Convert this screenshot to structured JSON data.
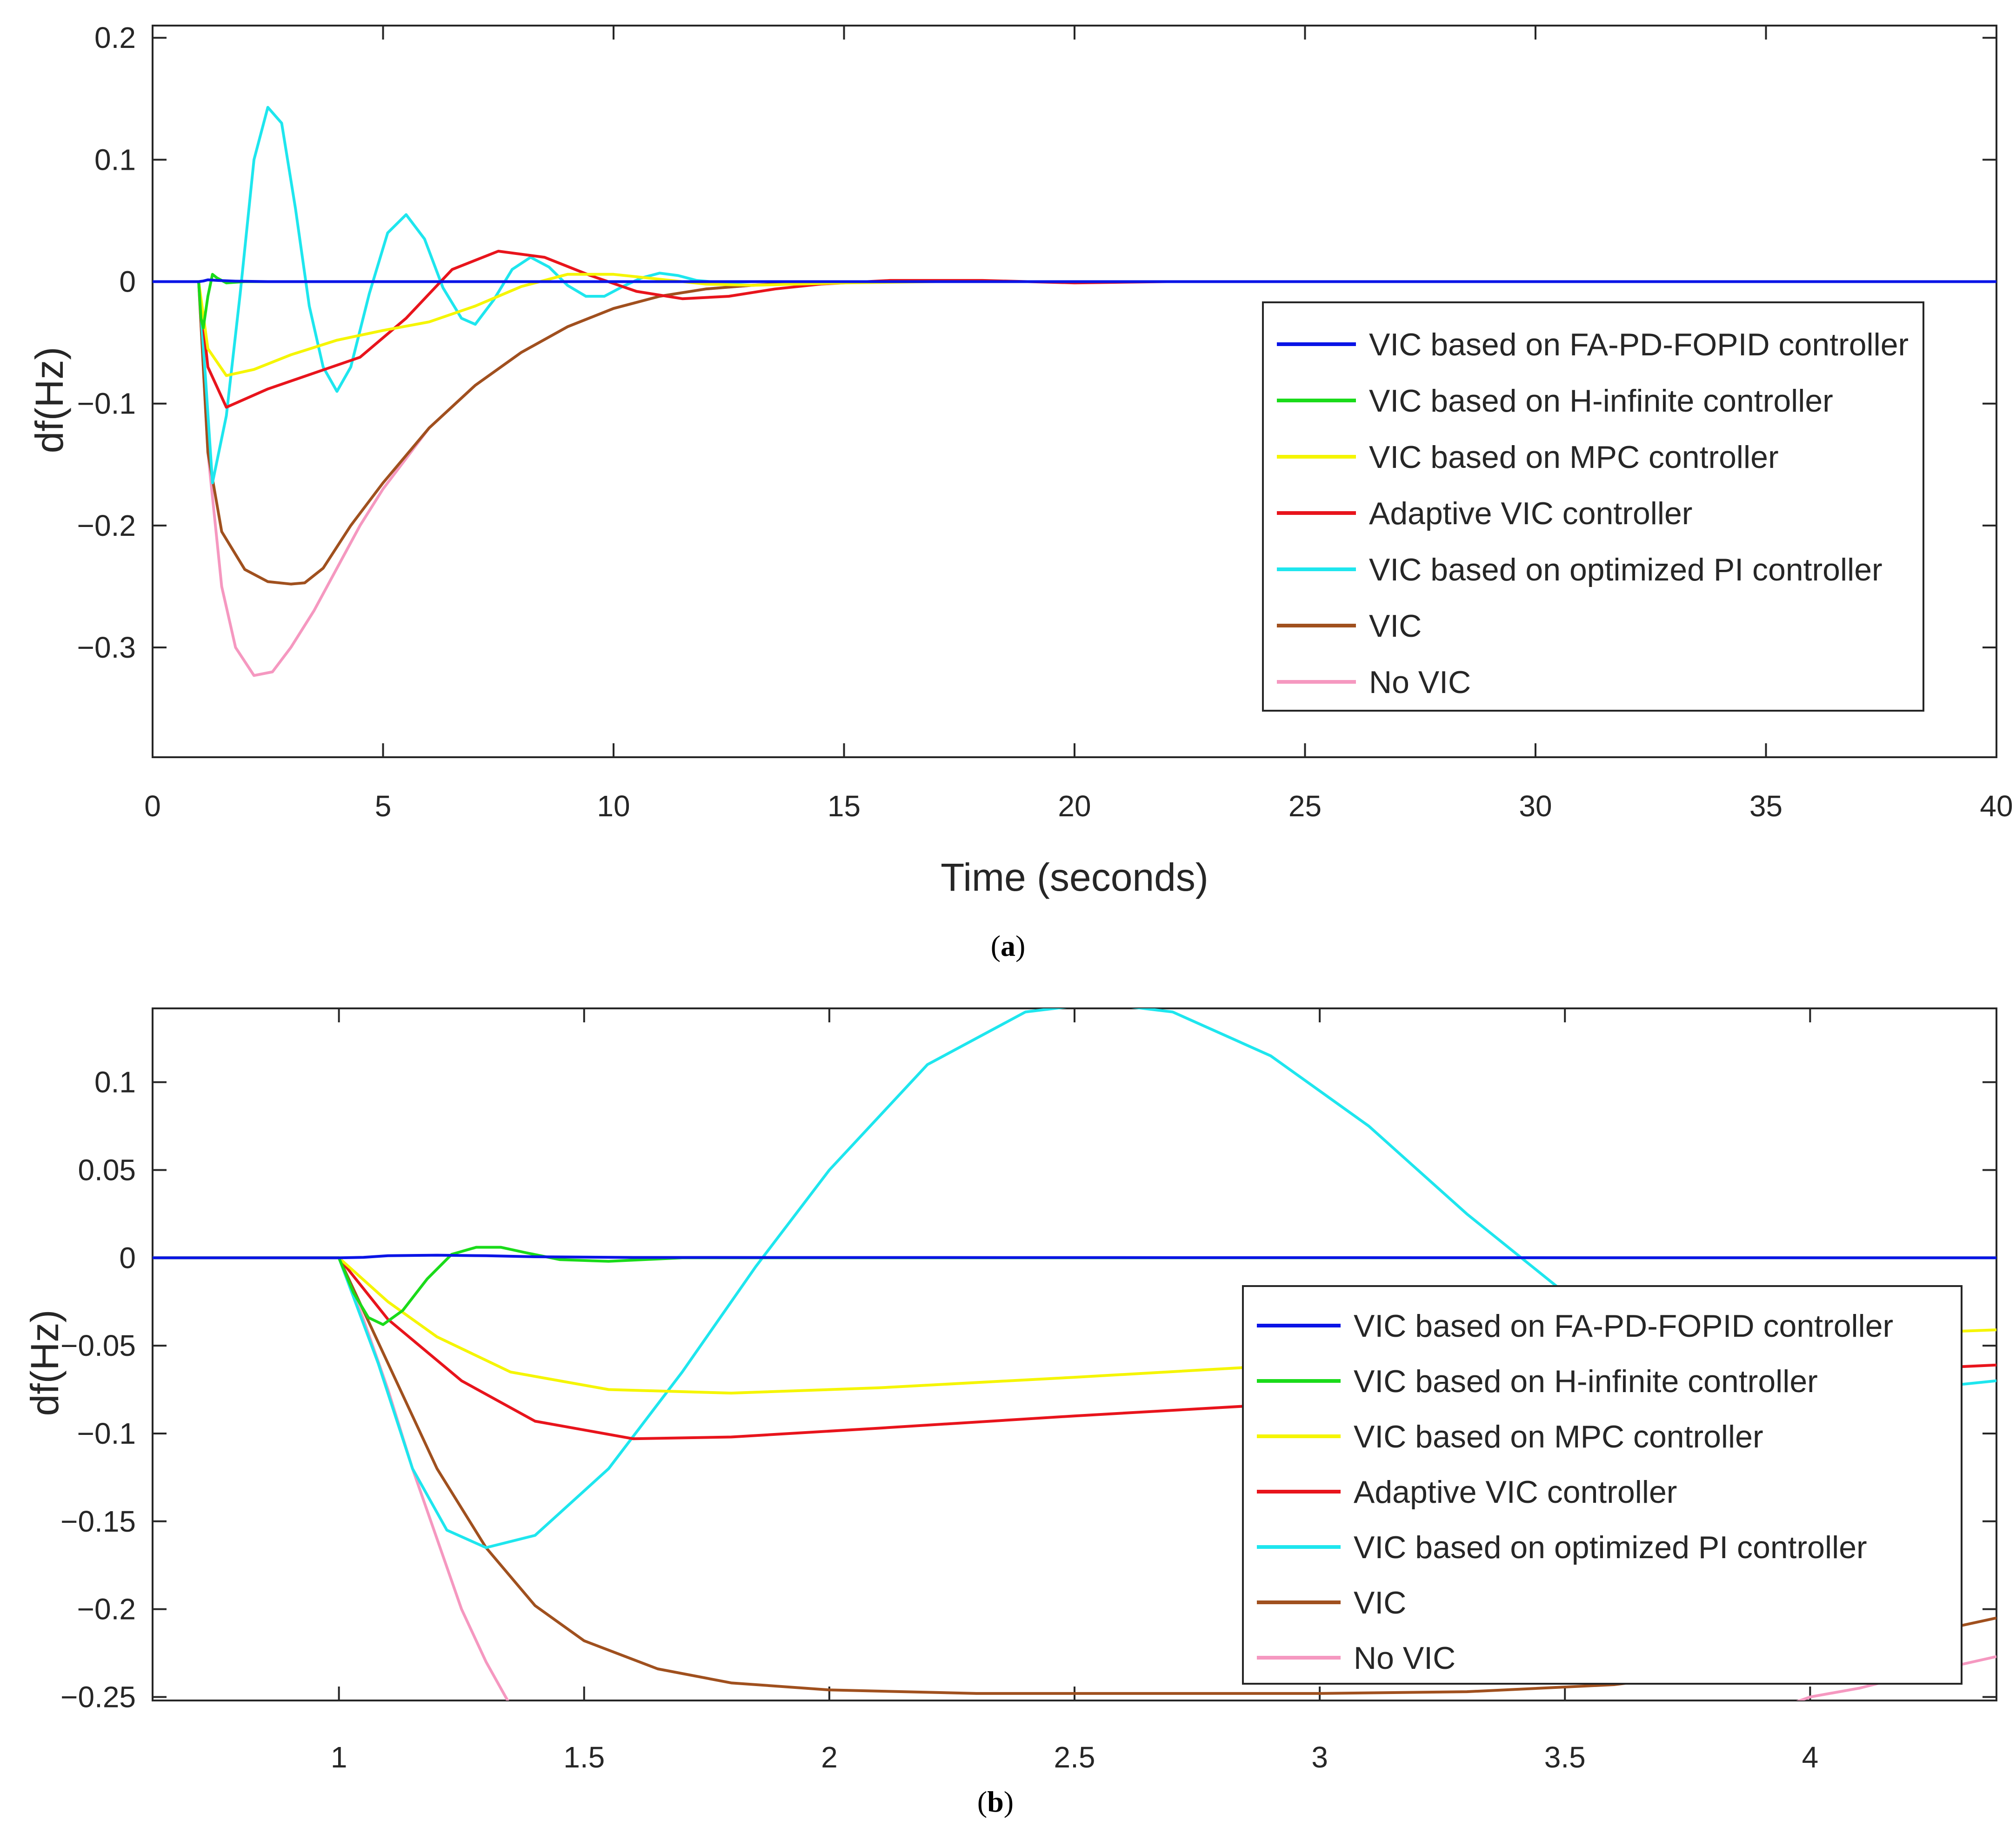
{
  "chart_data": [
    {
      "type": "line",
      "panel_label": "a",
      "caption_open": "(",
      "caption_close": ")",
      "xlabel": "Time (seconds)",
      "ylabel": "df(Hz)",
      "xlim": [
        0,
        40
      ],
      "ylim": [
        -0.39,
        0.21
      ],
      "xticks": [
        0,
        5,
        10,
        15,
        20,
        25,
        30,
        35,
        40
      ],
      "yticks": [
        -0.3,
        -0.2,
        -0.1,
        0,
        0.1,
        0.2
      ],
      "ytick_labels": [
        "−0.3",
        "−0.2",
        "−0.1",
        "0",
        "0.1",
        "0.2"
      ],
      "legend_position": "right",
      "series": [
        {
          "name": "VIC based on FA-PD-FOPID controller",
          "color": "#0a14e6",
          "x": [
            0,
            1,
            1.1,
            1.2,
            1.4,
            1.8,
            2.5,
            40
          ],
          "y": [
            0,
            0,
            0.0005,
            0.0015,
            0.001,
            0.0004,
            0,
            0
          ]
        },
        {
          "name": "VIC based on H-infinite controller",
          "color": "#1adb1a",
          "x": [
            0,
            1,
            1.05,
            1.1,
            1.2,
            1.3,
            1.4,
            1.6,
            2.0,
            40
          ],
          "y": [
            0,
            0,
            -0.03,
            -0.038,
            -0.012,
            0.006,
            0.003,
            -0.001,
            0,
            0
          ]
        },
        {
          "name": "VIC based on MPC controller",
          "color": "#f5f500",
          "x": [
            0,
            1,
            1.2,
            1.6,
            2.2,
            3,
            4,
            5,
            6,
            7,
            8,
            9,
            10,
            11,
            12,
            13,
            14,
            15,
            17,
            40
          ],
          "y": [
            0,
            0,
            -0.055,
            -0.077,
            -0.072,
            -0.06,
            -0.048,
            -0.04,
            -0.033,
            -0.02,
            -0.004,
            0.006,
            0.006,
            0.002,
            -0.002,
            -0.003,
            -0.002,
            -0.001,
            0,
            0
          ]
        },
        {
          "name": "Adaptive VIC controller",
          "color": "#e8141c",
          "x": [
            0,
            1,
            1.2,
            1.6,
            2.5,
            3.5,
            4.5,
            5.5,
            6.5,
            7.5,
            8.5,
            9.5,
            10.5,
            11.5,
            12.5,
            13.5,
            14.5,
            16,
            18,
            20,
            22,
            40
          ],
          "y": [
            0,
            0,
            -0.07,
            -0.103,
            -0.088,
            -0.075,
            -0.062,
            -0.03,
            0.01,
            0.025,
            0.02,
            0.005,
            -0.008,
            -0.014,
            -0.012,
            -0.006,
            -0.002,
            0.001,
            0.001,
            -0.001,
            0,
            0
          ]
        },
        {
          "name": "VIC based on optimized PI controller",
          "color": "#1ee6ee",
          "x": [
            0,
            1,
            1.15,
            1.3,
            1.6,
            1.9,
            2.2,
            2.5,
            2.8,
            3.1,
            3.4,
            3.7,
            4.0,
            4.3,
            4.7,
            5.1,
            5.5,
            5.9,
            6.3,
            6.7,
            7.0,
            7.4,
            7.8,
            8.2,
            8.6,
            9.0,
            9.4,
            9.8,
            10.2,
            10.6,
            11.0,
            11.4,
            11.8,
            12.4,
            13,
            40
          ],
          "y": [
            0,
            0,
            -0.08,
            -0.165,
            -0.11,
            -0.01,
            0.1,
            0.143,
            0.13,
            0.06,
            -0.02,
            -0.07,
            -0.09,
            -0.07,
            -0.01,
            0.04,
            0.055,
            0.035,
            -0.005,
            -0.03,
            -0.035,
            -0.015,
            0.01,
            0.02,
            0.012,
            -0.003,
            -0.012,
            -0.012,
            -0.004,
            0.003,
            0.007,
            0.005,
            0.001,
            -0.001,
            0,
            0
          ]
        },
        {
          "name": "VIC",
          "color": "#a0501e",
          "x": [
            0,
            1,
            1.2,
            1.5,
            2.0,
            2.5,
            3.0,
            3.3,
            3.7,
            4.3,
            5,
            6,
            7,
            8,
            9,
            10,
            11,
            12,
            13,
            14,
            16,
            18,
            40
          ],
          "y": [
            0,
            0,
            -0.14,
            -0.205,
            -0.236,
            -0.246,
            -0.248,
            -0.247,
            -0.235,
            -0.2,
            -0.165,
            -0.12,
            -0.085,
            -0.058,
            -0.037,
            -0.022,
            -0.012,
            -0.006,
            -0.003,
            -0.001,
            0,
            0,
            0
          ]
        },
        {
          "name": "No VIC",
          "color": "#f598c0",
          "x": [
            0,
            1,
            1.2,
            1.5,
            1.8,
            2.2,
            2.6,
            3.0,
            3.5,
            4.0,
            4.5,
            5,
            6,
            7,
            8,
            9,
            10,
            11,
            12,
            13,
            14,
            16,
            18,
            40
          ],
          "y": [
            0,
            0,
            -0.14,
            -0.25,
            -0.3,
            -0.323,
            -0.32,
            -0.3,
            -0.27,
            -0.235,
            -0.2,
            -0.17,
            -0.12,
            -0.085,
            -0.058,
            -0.037,
            -0.022,
            -0.012,
            -0.006,
            -0.003,
            -0.001,
            0,
            0,
            0
          ]
        }
      ]
    },
    {
      "type": "line",
      "panel_label": "b",
      "caption_open": "(",
      "caption_close": ")",
      "xlabel": "",
      "ylabel": "df(Hz)",
      "xlim": [
        0.62,
        4.38
      ],
      "ylim": [
        -0.252,
        0.142
      ],
      "xticks": [
        1,
        1.5,
        2,
        2.5,
        3,
        3.5,
        4
      ],
      "yticks": [
        -0.25,
        -0.2,
        -0.15,
        -0.1,
        -0.05,
        0,
        0.05,
        0.1
      ],
      "ytick_labels": [
        "−0.25",
        "−0.2",
        "−0.15",
        "−0.1",
        "−0.05",
        "0",
        "0.05",
        "0.1"
      ],
      "legend_position": "right",
      "series": [
        {
          "name": "VIC based on FA-PD-FOPID controller",
          "color": "#0a14e6",
          "x": [
            0.62,
            1,
            1.05,
            1.1,
            1.2,
            1.3,
            1.4,
            1.6,
            4.38
          ],
          "y": [
            0,
            0,
            0.0003,
            0.0012,
            0.0015,
            0.0012,
            0.0006,
            0.0002,
            0
          ]
        },
        {
          "name": "VIC based on H-infinite controller",
          "color": "#1adb1a",
          "x": [
            0.62,
            1,
            1.03,
            1.06,
            1.09,
            1.13,
            1.18,
            1.23,
            1.28,
            1.33,
            1.38,
            1.45,
            1.55,
            1.7,
            4.38
          ],
          "y": [
            0,
            0,
            -0.02,
            -0.034,
            -0.038,
            -0.03,
            -0.012,
            0.002,
            0.006,
            0.006,
            0.003,
            -0.001,
            -0.002,
            0,
            0
          ]
        },
        {
          "name": "VIC based on MPC controller",
          "color": "#f5f500",
          "x": [
            0.62,
            1,
            1.1,
            1.2,
            1.35,
            1.55,
            1.8,
            2.1,
            2.5,
            3.0,
            3.5,
            4.0,
            4.38
          ],
          "y": [
            0,
            0,
            -0.025,
            -0.045,
            -0.065,
            -0.075,
            -0.077,
            -0.074,
            -0.068,
            -0.06,
            -0.052,
            -0.045,
            -0.041
          ]
        },
        {
          "name": "Adaptive VIC controller",
          "color": "#e8141c",
          "x": [
            0.62,
            1,
            1.1,
            1.25,
            1.4,
            1.6,
            1.8,
            2.1,
            2.5,
            3.0,
            3.5,
            4.0,
            4.38
          ],
          "y": [
            0,
            0,
            -0.035,
            -0.07,
            -0.093,
            -0.103,
            -0.102,
            -0.097,
            -0.09,
            -0.082,
            -0.074,
            -0.066,
            -0.061
          ]
        },
        {
          "name": "VIC based on optimized PI controller",
          "color": "#1ee6ee",
          "x": [
            0.62,
            1,
            1.08,
            1.15,
            1.22,
            1.3,
            1.4,
            1.55,
            1.7,
            1.85,
            2.0,
            2.2,
            2.4,
            2.55,
            2.7,
            2.9,
            3.1,
            3.3,
            3.5,
            3.7,
            3.9,
            4.1,
            4.38
          ],
          "y": [
            0,
            0,
            -0.06,
            -0.12,
            -0.155,
            -0.165,
            -0.158,
            -0.12,
            -0.065,
            -0.005,
            0.05,
            0.11,
            0.14,
            0.145,
            0.14,
            0.115,
            0.075,
            0.025,
            -0.02,
            -0.05,
            -0.07,
            -0.078,
            -0.07
          ]
        },
        {
          "name": "VIC",
          "color": "#a0501e",
          "x": [
            0.62,
            1,
            1.1,
            1.2,
            1.3,
            1.4,
            1.5,
            1.65,
            1.8,
            2.0,
            2.3,
            2.6,
            3.0,
            3.3,
            3.6,
            3.9,
            4.1,
            4.38
          ],
          "y": [
            0,
            0,
            -0.06,
            -0.12,
            -0.165,
            -0.198,
            -0.218,
            -0.234,
            -0.242,
            -0.246,
            -0.248,
            -0.248,
            -0.248,
            -0.247,
            -0.243,
            -0.233,
            -0.222,
            -0.205
          ]
        },
        {
          "name": "No VIC",
          "color": "#f598c0",
          "x": [
            0.62,
            1,
            1.05,
            1.1,
            1.15,
            1.2,
            1.25,
            1.3,
            1.35,
            3.95,
            4.0,
            4.1,
            4.2,
            4.3,
            4.38
          ],
          "y": [
            0,
            0,
            -0.035,
            -0.075,
            -0.12,
            -0.16,
            -0.2,
            -0.23,
            -0.255,
            -0.255,
            -0.25,
            -0.245,
            -0.238,
            -0.232,
            -0.227
          ]
        }
      ]
    }
  ]
}
